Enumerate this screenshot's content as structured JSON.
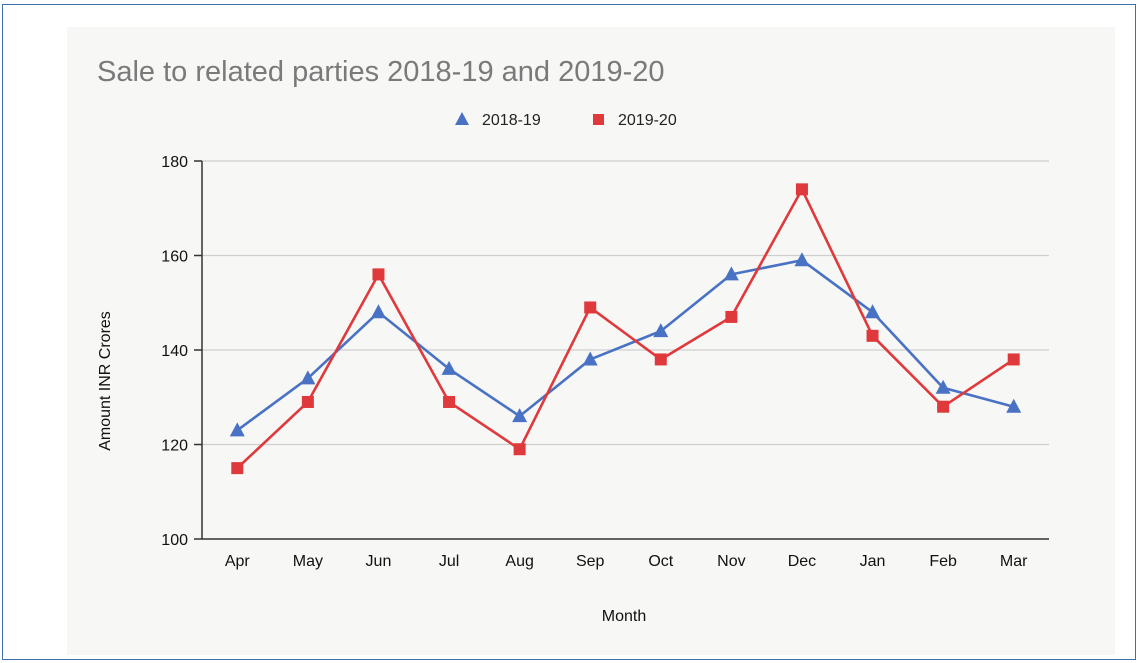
{
  "chart_data": {
    "type": "line",
    "title": "Sale to related parties 2018-19 and 2019-20",
    "xlabel": "Month",
    "ylabel": "Amount INR Crores",
    "categories": [
      "Apr",
      "May",
      "Jun",
      "Jul",
      "Aug",
      "Sep",
      "Oct",
      "Nov",
      "Dec",
      "Jan",
      "Feb",
      "Mar"
    ],
    "ylim": [
      100,
      180
    ],
    "yticks": [
      "100",
      "120",
      "140",
      "160",
      "180"
    ],
    "grid": true,
    "legend_position": "top-center",
    "series": [
      {
        "name": "2018-19",
        "color": "#4a72c4",
        "marker": "triangle",
        "values": [
          123,
          134,
          148,
          136,
          126,
          138,
          144,
          156,
          159,
          148,
          132,
          128
        ]
      },
      {
        "name": "2019-20",
        "color": "#e0393c",
        "marker": "square",
        "values": [
          115,
          129,
          156,
          129,
          119,
          149,
          138,
          147,
          174,
          143,
          128,
          138
        ]
      }
    ]
  }
}
